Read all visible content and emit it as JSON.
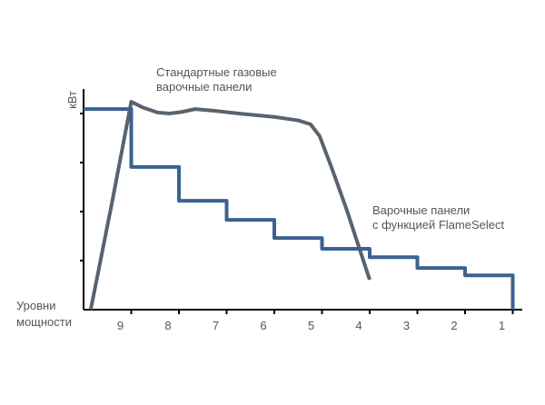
{
  "chart_data": {
    "type": "line",
    "y_label": "кВт",
    "x_label": "Уровни\nмощности",
    "xlim": [
      10,
      0.8
    ],
    "xticks": [
      9,
      8,
      7,
      6,
      5,
      4,
      3,
      2,
      1
    ],
    "ylim": [
      0,
      4.5
    ],
    "yticks": [
      1,
      2,
      3,
      4
    ],
    "series": [
      {
        "name": "Стандартные газовые\nварочные панели",
        "color": "#59636e",
        "x": [
          9.85,
          9.4,
          9.0,
          8.75,
          8.45,
          8.2,
          7.95,
          7.66,
          7.2,
          6.75,
          6.0,
          5.5,
          5.24,
          5.05,
          4.8,
          4.49,
          4.2,
          4.0
        ],
        "y": [
          0,
          2.2,
          4.24,
          4.12,
          4.02,
          4.0,
          4.03,
          4.09,
          4.05,
          4.0,
          3.93,
          3.86,
          3.78,
          3.54,
          2.9,
          2.06,
          1.2,
          0.61
        ]
      },
      {
        "name": "Варочные панели\nс функцией FlameSelect",
        "color": "#3a6291",
        "x": [
          10,
          9,
          9,
          8,
          8,
          7,
          7,
          6,
          6,
          5,
          5,
          4,
          4,
          3,
          3,
          2,
          2,
          1,
          1
        ],
        "y": [
          4.09,
          4.09,
          2.91,
          2.91,
          2.22,
          2.22,
          1.83,
          1.83,
          1.46,
          1.46,
          1.24,
          1.24,
          1.07,
          1.07,
          0.85,
          0.85,
          0.7,
          0.7,
          0
        ]
      }
    ]
  }
}
